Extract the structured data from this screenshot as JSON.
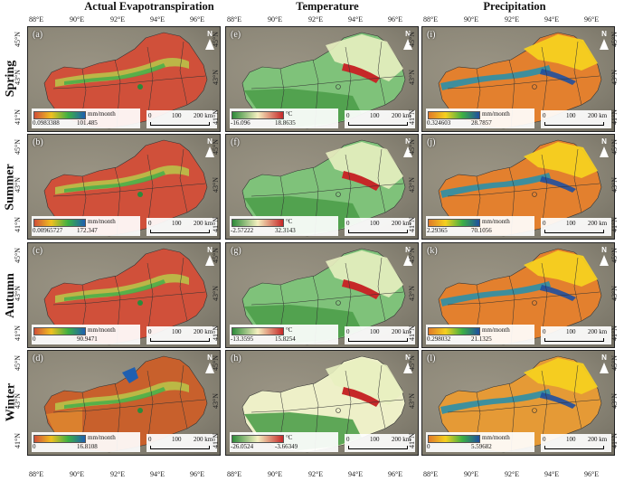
{
  "columns": [
    {
      "title": "Actual Evapotranspiration"
    },
    {
      "title": "Temperature"
    },
    {
      "title": "Precipitation"
    }
  ],
  "rows": [
    {
      "label": "Spring"
    },
    {
      "label": "Summer"
    },
    {
      "label": "Autumn"
    },
    {
      "label": "Winter"
    }
  ],
  "panels": [
    {
      "letter": "(a)",
      "unit": "mm/month",
      "min": "0.0983388",
      "max": "101.485",
      "type": "et"
    },
    {
      "letter": "(e)",
      "unit": "°C",
      "min": "-16.096",
      "max": "18.8635",
      "type": "temp"
    },
    {
      "letter": "(i)",
      "unit": "mm/month",
      "min": "0.324603",
      "max": "28.7857",
      "type": "prec"
    },
    {
      "letter": "(b)",
      "unit": "mm/month",
      "min": "0.00965727",
      "max": "172.347",
      "type": "et"
    },
    {
      "letter": "(f)",
      "unit": "°C",
      "min": "-2.57222",
      "max": "32.3143",
      "type": "temp"
    },
    {
      "letter": "(j)",
      "unit": "mm/month",
      "min": "2.29365",
      "max": "70.1056",
      "type": "prec"
    },
    {
      "letter": "(c)",
      "unit": "mm/month",
      "min": "0",
      "max": "90.9471",
      "type": "et"
    },
    {
      "letter": "(g)",
      "unit": "°C",
      "min": "-13.3595",
      "max": "15.8254",
      "type": "temp"
    },
    {
      "letter": "(k)",
      "unit": "mm/month",
      "min": "0.298032",
      "max": "21.1325",
      "type": "prec"
    },
    {
      "letter": "(d)",
      "unit": "mm/month",
      "min": "0",
      "max": "16.8108",
      "type": "et"
    },
    {
      "letter": "(h)",
      "unit": "°C",
      "min": "-26.0524",
      "max": "-3.66349",
      "type": "temp"
    },
    {
      "letter": "(l)",
      "unit": "mm/month",
      "min": "0",
      "max": "5.59682",
      "type": "prec"
    }
  ],
  "scalebar": {
    "a": "0",
    "b": "100",
    "c": "200 km"
  },
  "north": "N",
  "lon_ticks": [
    "88°E",
    "90°E",
    "92°E",
    "94°E",
    "96°E"
  ],
  "lat_ticks": [
    "45°N",
    "43°N",
    "41°N"
  ],
  "colors": {
    "et_low": "#d0503a",
    "et_mid": "#f0c020",
    "et_high": "#1f5fb0",
    "temp_low": "#2e8b3a",
    "temp_mid": "#f5f0c0",
    "temp_high": "#c62828",
    "prec_low": "#e07a2a",
    "prec_mid": "#f5d020",
    "prec_high": "#1f4fa0",
    "background": "#8a8576"
  }
}
